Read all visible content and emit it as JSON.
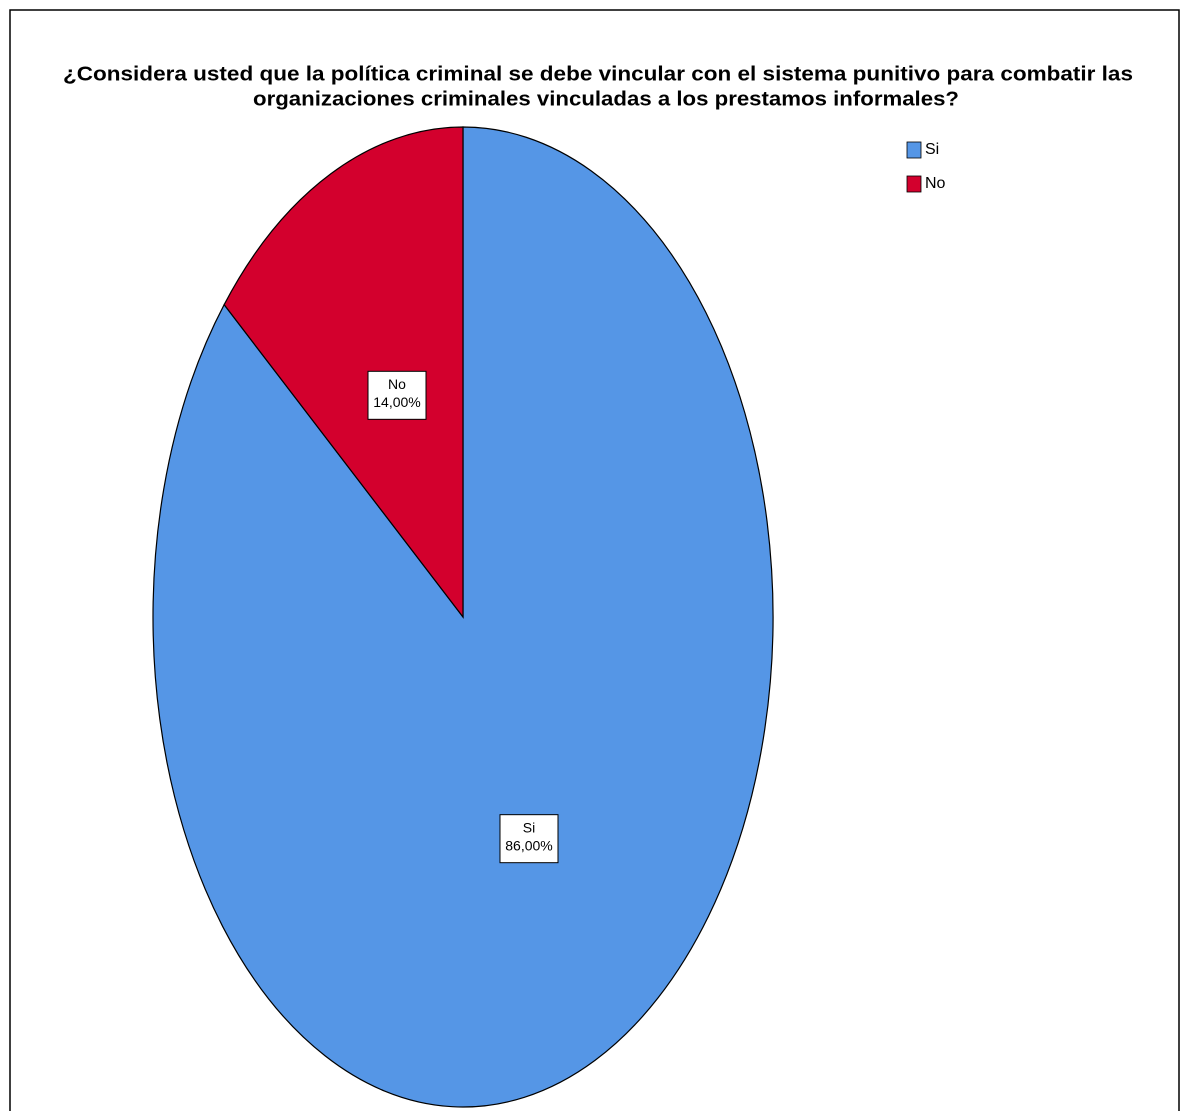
{
  "chart_data": {
    "type": "pie",
    "title": [
      "¿Considera usted que la política criminal se debe vincular con el sistema punitivo para combatir las",
      "organizaciones criminales vinculadas a los prestamos informales?"
    ],
    "categories": [
      "Si",
      "No"
    ],
    "values": [
      86,
      14
    ],
    "value_labels": [
      "86,00%",
      "14,00%"
    ],
    "colors": [
      "#5596e6",
      "#d3002d"
    ],
    "legend": "top-right"
  }
}
